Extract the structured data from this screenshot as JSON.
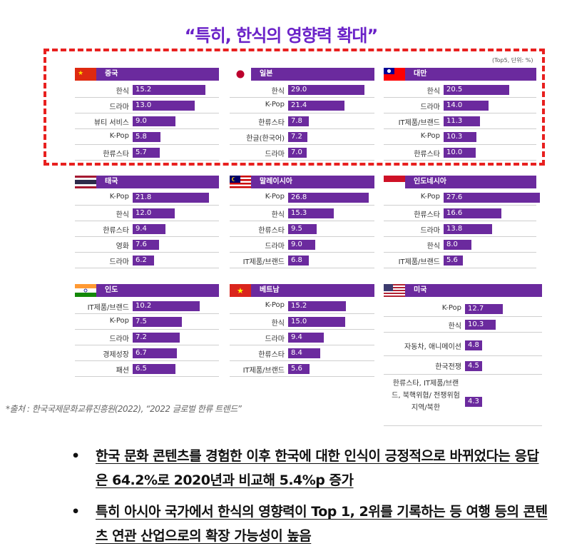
{
  "title": "“특히, 한식의 영향력 확대”",
  "unit_note": "(Top5, 단위: %)",
  "source": "*출처 : 한국국제문화교류진흥원(2022), “2022 글로벌 한류 트렌드”",
  "bullets": [
    "한국 문화 콘텐츠를 경험한 이후 한국에 대한 인식이 긍정적으로 바뀌었다는 응답은 64.2%로 2020년과 비교해 5.4%p 증가",
    "특히 아시아 국가에서 한식의 영향력이 Top 1, 2위를 기록하는 등 여행 등의 콘텐츠 연관 산업으로의 확장 가능성이 높음"
  ],
  "colors": {
    "bar": "#6b2a9e",
    "title": "#6a22c8",
    "highlight": "#e8201f"
  },
  "chart_data": [
    {
      "type": "bar",
      "country": "중국",
      "flag": "china-flag-icon",
      "highlighted": true,
      "categories": [
        "한식",
        "드라마",
        "뷰티 서비스",
        "K-Pop",
        "한류스타"
      ],
      "values": [
        15.2,
        13.0,
        9.0,
        5.8,
        5.7
      ]
    },
    {
      "type": "bar",
      "country": "일본",
      "flag": "japan-flag-icon",
      "highlighted": true,
      "categories": [
        "한식",
        "K-Pop",
        "한류스타",
        "한글(한국어)",
        "드라마"
      ],
      "values": [
        29.0,
        21.4,
        7.8,
        7.2,
        7.0
      ]
    },
    {
      "type": "bar",
      "country": "대만",
      "flag": "taiwan-flag-icon",
      "highlighted": true,
      "categories": [
        "한식",
        "드라마",
        "IT제품/브랜드",
        "K-Pop",
        "한류스타"
      ],
      "values": [
        20.5,
        14.0,
        11.3,
        10.3,
        10.0
      ]
    },
    {
      "type": "bar",
      "country": "태국",
      "flag": "thailand-flag-icon",
      "highlighted": false,
      "categories": [
        "K-Pop",
        "한식",
        "한류스타",
        "영화",
        "드라마"
      ],
      "values": [
        21.8,
        12.0,
        9.4,
        7.6,
        6.2
      ]
    },
    {
      "type": "bar",
      "country": "말레이시아",
      "flag": "malaysia-flag-icon",
      "highlighted": false,
      "categories": [
        "K-Pop",
        "한식",
        "한류스타",
        "드라마",
        "IT제품/브랜드"
      ],
      "values": [
        26.8,
        15.3,
        9.5,
        9.0,
        6.8
      ]
    },
    {
      "type": "bar",
      "country": "인도네시아",
      "flag": "indonesia-flag-icon",
      "highlighted": false,
      "categories": [
        "K-Pop",
        "한류스타",
        "드라마",
        "한식",
        "IT제품/브랜드"
      ],
      "values": [
        27.6,
        16.6,
        13.8,
        8.0,
        5.6
      ]
    },
    {
      "type": "bar",
      "country": "인도",
      "flag": "india-flag-icon",
      "highlighted": false,
      "categories": [
        "IT제품/브랜드",
        "K-Pop",
        "드라마",
        "경제성장",
        "패션"
      ],
      "values": [
        10.2,
        7.5,
        7.2,
        6.7,
        6.5
      ]
    },
    {
      "type": "bar",
      "country": "베트남",
      "flag": "vietnam-flag-icon",
      "highlighted": false,
      "categories": [
        "K-Pop",
        "한식",
        "드라마",
        "한류스타",
        "IT제품/브랜드"
      ],
      "values": [
        15.2,
        15.0,
        9.4,
        8.4,
        5.6
      ]
    },
    {
      "type": "bar",
      "country": "미국",
      "flag": "usa-flag-icon",
      "highlighted": false,
      "categories": [
        "K-Pop",
        "한식",
        "자동차, 애니메이션",
        "한국전쟁",
        "한류스타, IT제품/브랜드, 북핵위협/ 전쟁위험지역/북한"
      ],
      "values": [
        12.7,
        10.3,
        4.8,
        4.5,
        4.3
      ]
    }
  ]
}
